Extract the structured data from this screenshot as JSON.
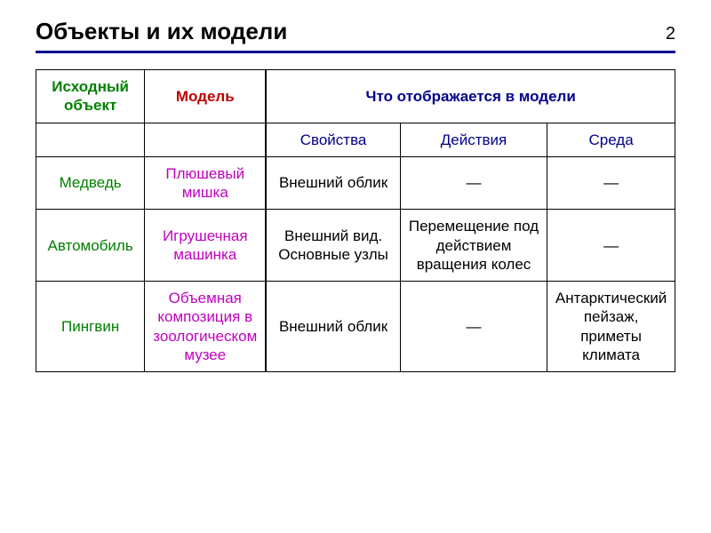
{
  "page_number": "2",
  "title": "Объекты и их модели",
  "colors": {
    "rule": "#00008b",
    "header_green": "#008000",
    "header_red": "#c00000",
    "header_blue": "#00008b",
    "subheader_blue": "#00008b",
    "object_col": "#008000",
    "model_col": "#c000c0",
    "body_text": "#000000",
    "background": "#ffffff",
    "border": "#000000"
  },
  "fonts": {
    "title_size_pt": 20,
    "cell_size_pt": 13,
    "family": "Arial"
  },
  "table": {
    "columns": [
      {
        "key": "object",
        "width_pct": 17,
        "header": "Исходный объект",
        "header_color": "#008000"
      },
      {
        "key": "model",
        "width_pct": 19,
        "header": "Модель",
        "header_color": "#c00000"
      },
      {
        "key": "props",
        "width_pct": 21,
        "group": "Что отображается в модели",
        "subheader": "Свойства"
      },
      {
        "key": "acts",
        "width_pct": 23,
        "group": "Что отображается в модели",
        "subheader": "Действия"
      },
      {
        "key": "env",
        "width_pct": 20,
        "group": "Что отображается в модели",
        "subheader": "Среда"
      }
    ],
    "group_header": "Что отображается в модели",
    "subheaders": {
      "props": "Свойства",
      "acts": "Действия",
      "env": "Среда"
    },
    "rows": [
      {
        "object": "Медведь",
        "model": "Плюшевый мишка",
        "props": "Внешний облик",
        "acts": "—",
        "env": "—"
      },
      {
        "object": "Автомобиль",
        "model": "Игрушечная машинка",
        "props": "Внешний вид. Основные узлы",
        "acts": "Перемещение под действием вращения колес",
        "env": "—"
      },
      {
        "object": "Пингвин",
        "model": "Объемная композиция в зоологическом музее",
        "props": "Внешний облик",
        "acts": "—",
        "env": "Антарктический пейзаж, приметы климата"
      }
    ]
  }
}
